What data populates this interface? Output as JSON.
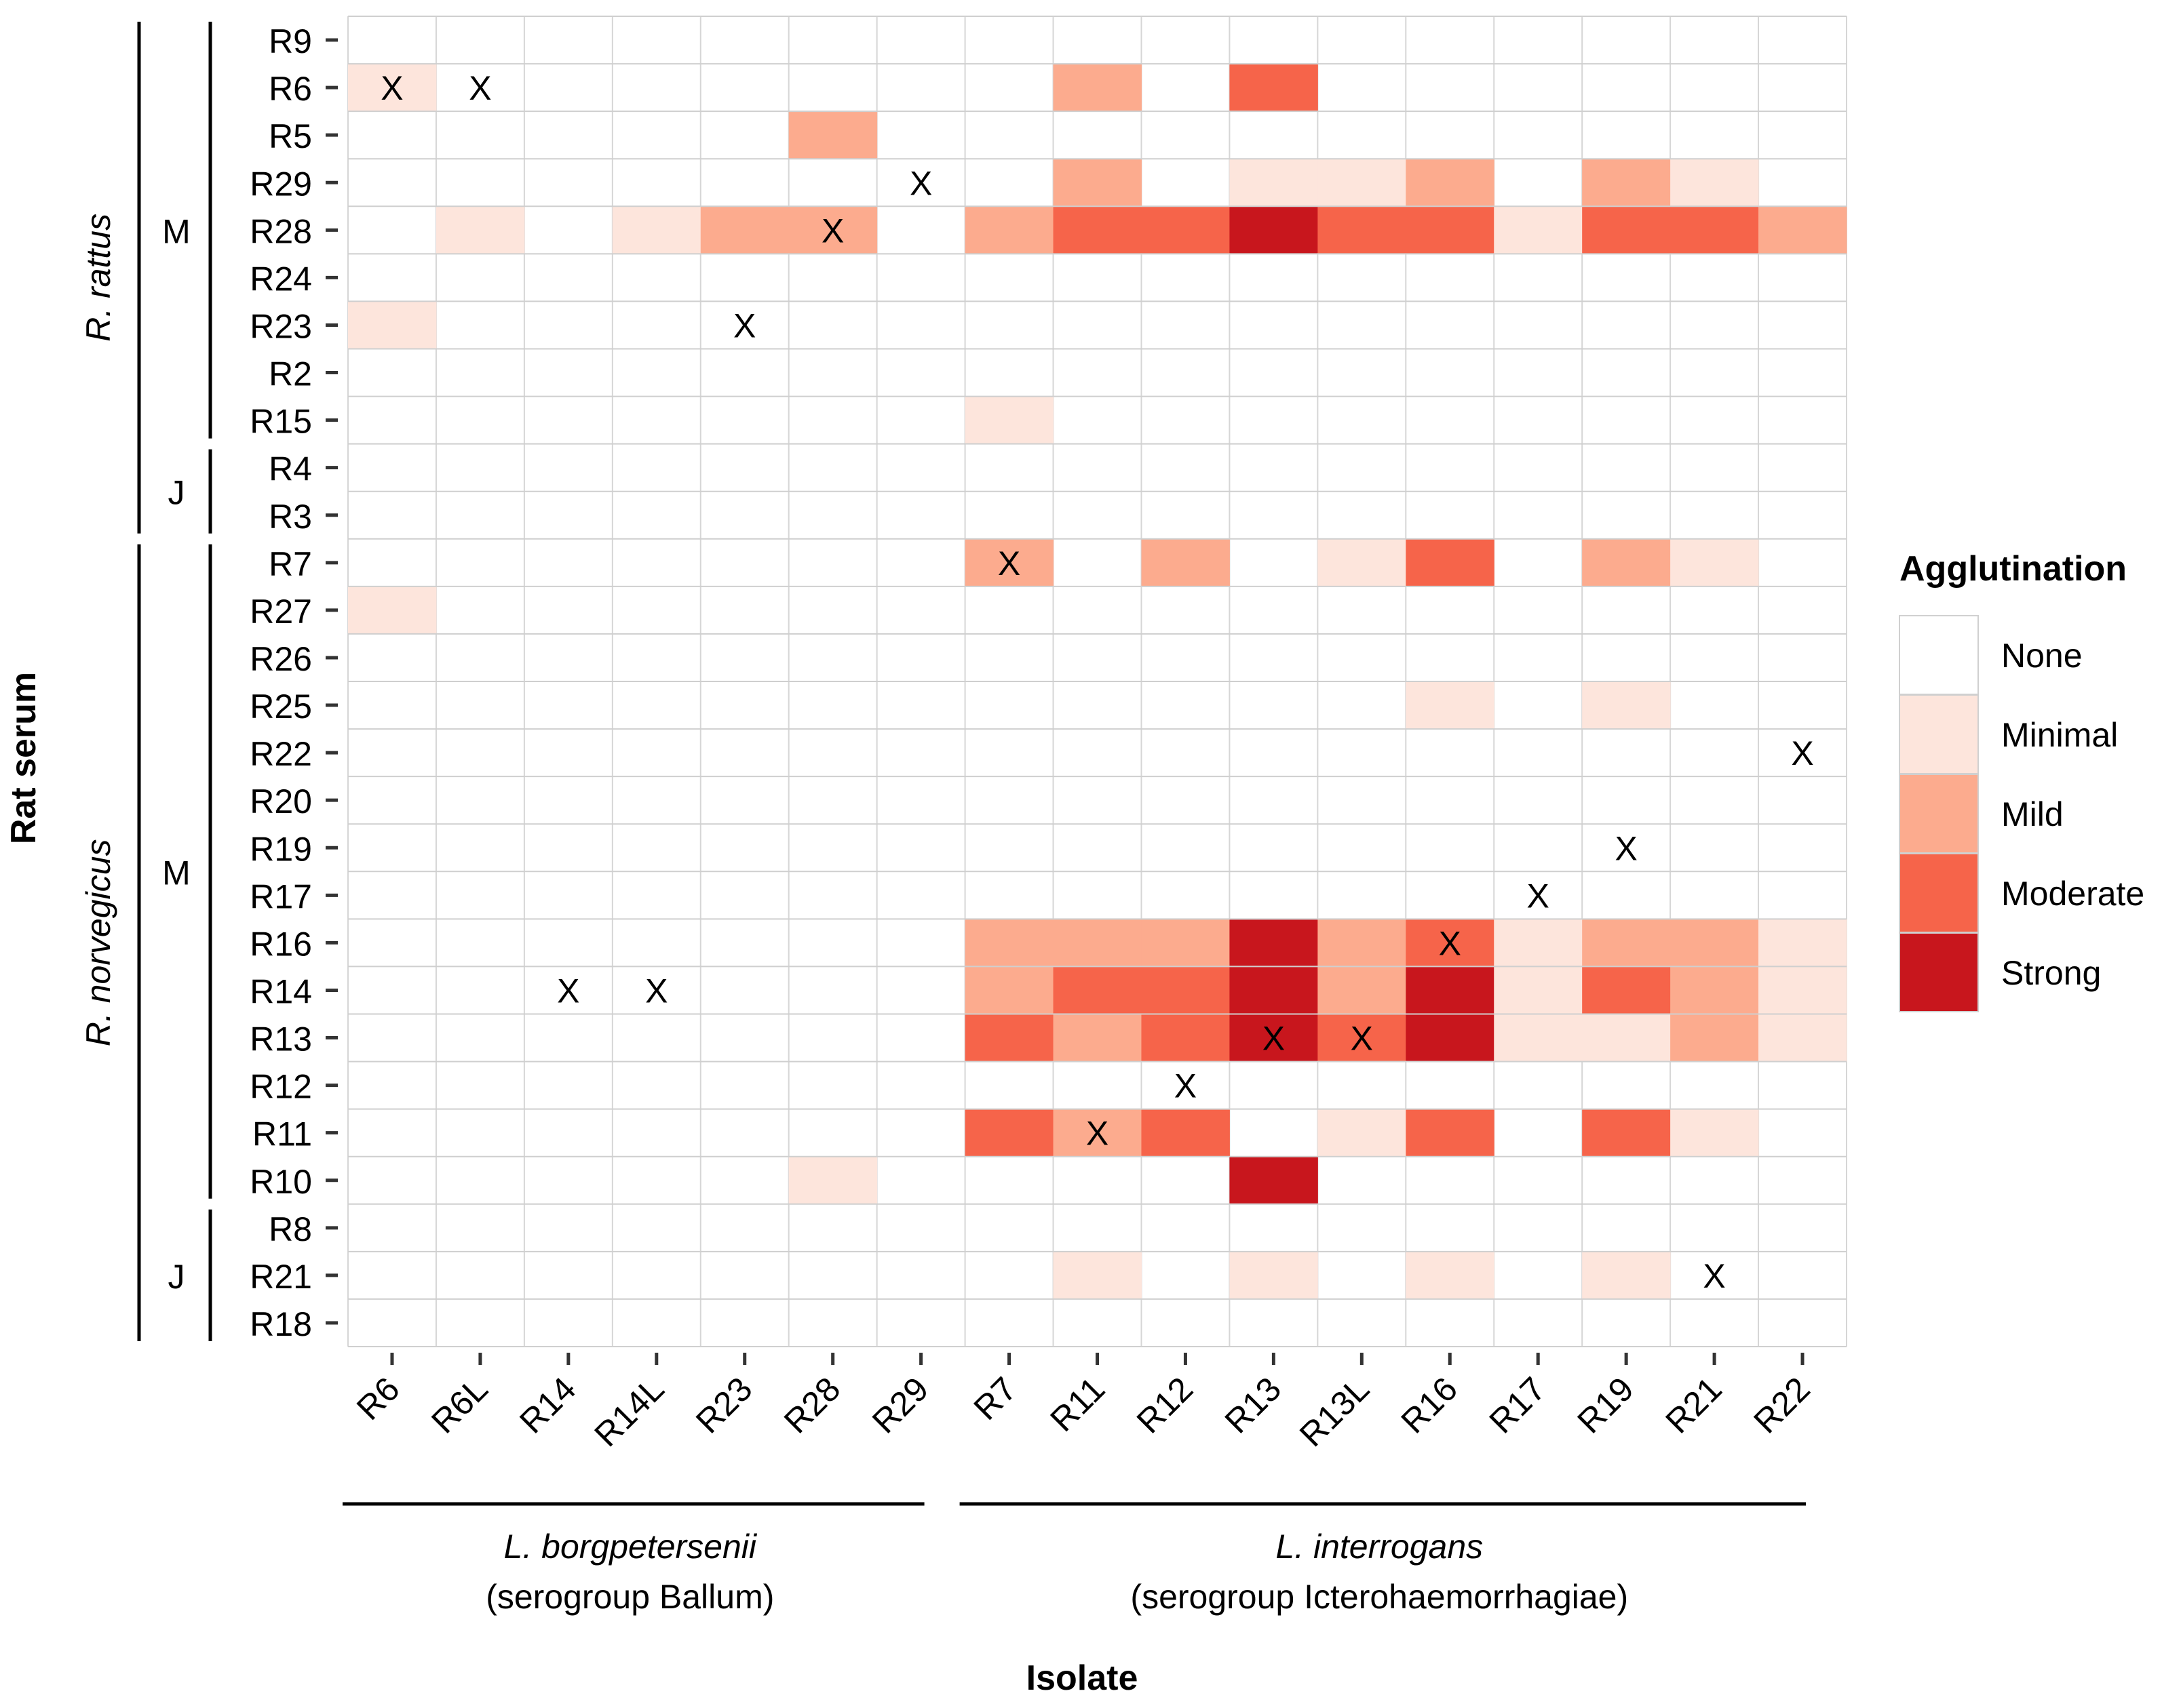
{
  "chart_data": {
    "type": "heatmap",
    "xlabel": "Isolate",
    "ylabel": "Rat serum",
    "x_categories": [
      "R6",
      "R6L",
      "R14",
      "R14L",
      "R23",
      "R28",
      "R29",
      "R7",
      "R11",
      "R12",
      "R13",
      "R13L",
      "R16",
      "R17",
      "R19",
      "R21",
      "R22"
    ],
    "y_categories_top_to_bottom": [
      "R9",
      "R6",
      "R5",
      "R29",
      "R28",
      "R24",
      "R23",
      "R2",
      "R15",
      "R4",
      "R3",
      "R7",
      "R27",
      "R26",
      "R25",
      "R22",
      "R20",
      "R19",
      "R17",
      "R16",
      "R14",
      "R13",
      "R12",
      "R11",
      "R10",
      "R8",
      "R21",
      "R18"
    ],
    "x_groups": [
      {
        "species": "L. borgpetersenii",
        "serogroup": "(serogroup Ballum)",
        "members": [
          "R6",
          "R6L",
          "R14",
          "R14L",
          "R23",
          "R28",
          "R29"
        ]
      },
      {
        "species": "L. interrogans",
        "serogroup": "(serogroup Icterohaemorrhagiae)",
        "members": [
          "R7",
          "R11",
          "R12",
          "R13",
          "R13L",
          "R16",
          "R17",
          "R19",
          "R21",
          "R22"
        ]
      }
    ],
    "y_groups": [
      {
        "species": "R. rattus",
        "subgroups": [
          {
            "label": "M",
            "members": [
              "R9",
              "R6",
              "R5",
              "R29",
              "R28",
              "R24",
              "R23",
              "R2",
              "R15"
            ]
          },
          {
            "label": "J",
            "members": [
              "R4",
              "R3"
            ]
          }
        ]
      },
      {
        "species": "R. norvegicus",
        "subgroups": [
          {
            "label": "M",
            "members": [
              "R7",
              "R27",
              "R26",
              "R25",
              "R22",
              "R20",
              "R19",
              "R17",
              "R16",
              "R14",
              "R13",
              "R12",
              "R11",
              "R10"
            ]
          },
          {
            "label": "J",
            "members": [
              "R8",
              "R21",
              "R18"
            ]
          }
        ]
      }
    ],
    "legend": {
      "title": "Agglutination",
      "levels": [
        "None",
        "Minimal",
        "Mild",
        "Moderate",
        "Strong"
      ],
      "colors": [
        "#ffffff",
        "#fde5dc",
        "#fcab8e",
        "#f6644a",
        "#c8161d"
      ],
      "placement": "right"
    },
    "level_values_note": "0=None 1=Minimal 2=Mild 3=Moderate 4=Strong",
    "values": [
      [
        0,
        0,
        0,
        0,
        0,
        0,
        0,
        0,
        0,
        0,
        0,
        0,
        0,
        0,
        0,
        0,
        0
      ],
      [
        1,
        0,
        0,
        0,
        0,
        0,
        0,
        0,
        2,
        0,
        3,
        0,
        0,
        0,
        0,
        0,
        0
      ],
      [
        0,
        0,
        0,
        0,
        0,
        2,
        0,
        0,
        0,
        0,
        0,
        0,
        0,
        0,
        0,
        0,
        0
      ],
      [
        0,
        0,
        0,
        0,
        0,
        0,
        0,
        0,
        2,
        0,
        1,
        1,
        2,
        0,
        2,
        1,
        0
      ],
      [
        0,
        1,
        0,
        1,
        2,
        2,
        0,
        2,
        3,
        3,
        4,
        3,
        3,
        1,
        3,
        3,
        2
      ],
      [
        0,
        0,
        0,
        0,
        0,
        0,
        0,
        0,
        0,
        0,
        0,
        0,
        0,
        0,
        0,
        0,
        0
      ],
      [
        1,
        0,
        0,
        0,
        0,
        0,
        0,
        0,
        0,
        0,
        0,
        0,
        0,
        0,
        0,
        0,
        0
      ],
      [
        0,
        0,
        0,
        0,
        0,
        0,
        0,
        0,
        0,
        0,
        0,
        0,
        0,
        0,
        0,
        0,
        0
      ],
      [
        0,
        0,
        0,
        0,
        0,
        0,
        0,
        1,
        0,
        0,
        0,
        0,
        0,
        0,
        0,
        0,
        0
      ],
      [
        0,
        0,
        0,
        0,
        0,
        0,
        0,
        0,
        0,
        0,
        0,
        0,
        0,
        0,
        0,
        0,
        0
      ],
      [
        0,
        0,
        0,
        0,
        0,
        0,
        0,
        0,
        0,
        0,
        0,
        0,
        0,
        0,
        0,
        0,
        0
      ],
      [
        0,
        0,
        0,
        0,
        0,
        0,
        0,
        2,
        0,
        2,
        0,
        1,
        3,
        0,
        2,
        1,
        0
      ],
      [
        1,
        0,
        0,
        0,
        0,
        0,
        0,
        0,
        0,
        0,
        0,
        0,
        0,
        0,
        0,
        0,
        0
      ],
      [
        0,
        0,
        0,
        0,
        0,
        0,
        0,
        0,
        0,
        0,
        0,
        0,
        0,
        0,
        0,
        0,
        0
      ],
      [
        0,
        0,
        0,
        0,
        0,
        0,
        0,
        0,
        0,
        0,
        0,
        0,
        1,
        0,
        1,
        0,
        0
      ],
      [
        0,
        0,
        0,
        0,
        0,
        0,
        0,
        0,
        0,
        0,
        0,
        0,
        0,
        0,
        0,
        0,
        0
      ],
      [
        0,
        0,
        0,
        0,
        0,
        0,
        0,
        0,
        0,
        0,
        0,
        0,
        0,
        0,
        0,
        0,
        0
      ],
      [
        0,
        0,
        0,
        0,
        0,
        0,
        0,
        0,
        0,
        0,
        0,
        0,
        0,
        0,
        0,
        0,
        0
      ],
      [
        0,
        0,
        0,
        0,
        0,
        0,
        0,
        0,
        0,
        0,
        0,
        0,
        0,
        0,
        0,
        0,
        0
      ],
      [
        0,
        0,
        0,
        0,
        0,
        0,
        0,
        2,
        2,
        2,
        4,
        2,
        3,
        1,
        2,
        2,
        1
      ],
      [
        0,
        0,
        0,
        0,
        0,
        0,
        0,
        2,
        3,
        3,
        4,
        2,
        4,
        1,
        3,
        2,
        1
      ],
      [
        0,
        0,
        0,
        0,
        0,
        0,
        0,
        3,
        2,
        3,
        4,
        3,
        4,
        1,
        1,
        2,
        1
      ],
      [
        0,
        0,
        0,
        0,
        0,
        0,
        0,
        0,
        0,
        0,
        0,
        0,
        0,
        0,
        0,
        0,
        0
      ],
      [
        0,
        0,
        0,
        0,
        0,
        0,
        0,
        3,
        2,
        3,
        0,
        1,
        3,
        0,
        3,
        1,
        0
      ],
      [
        0,
        0,
        0,
        0,
        0,
        1,
        0,
        0,
        0,
        0,
        4,
        0,
        0,
        0,
        0,
        0,
        0
      ],
      [
        0,
        0,
        0,
        0,
        0,
        0,
        0,
        0,
        0,
        0,
        0,
        0,
        0,
        0,
        0,
        0,
        0
      ],
      [
        0,
        0,
        0,
        0,
        0,
        0,
        0,
        0,
        1,
        0,
        1,
        0,
        1,
        0,
        1,
        0,
        0
      ],
      [
        0,
        0,
        0,
        0,
        0,
        0,
        0,
        0,
        0,
        0,
        0,
        0,
        0,
        0,
        0,
        0,
        0
      ]
    ],
    "marker_symbol": "X",
    "markers": [
      {
        "row": "R6",
        "col": "R6"
      },
      {
        "row": "R6",
        "col": "R6L"
      },
      {
        "row": "R29",
        "col": "R29"
      },
      {
        "row": "R28",
        "col": "R28"
      },
      {
        "row": "R23",
        "col": "R23"
      },
      {
        "row": "R7",
        "col": "R7"
      },
      {
        "row": "R22",
        "col": "R22"
      },
      {
        "row": "R19",
        "col": "R19"
      },
      {
        "row": "R17",
        "col": "R17"
      },
      {
        "row": "R16",
        "col": "R16"
      },
      {
        "row": "R14",
        "col": "R14"
      },
      {
        "row": "R14",
        "col": "R14L"
      },
      {
        "row": "R13",
        "col": "R13"
      },
      {
        "row": "R13",
        "col": "R13L"
      },
      {
        "row": "R12",
        "col": "R12"
      },
      {
        "row": "R11",
        "col": "R11"
      },
      {
        "row": "R21",
        "col": "R21"
      }
    ]
  }
}
